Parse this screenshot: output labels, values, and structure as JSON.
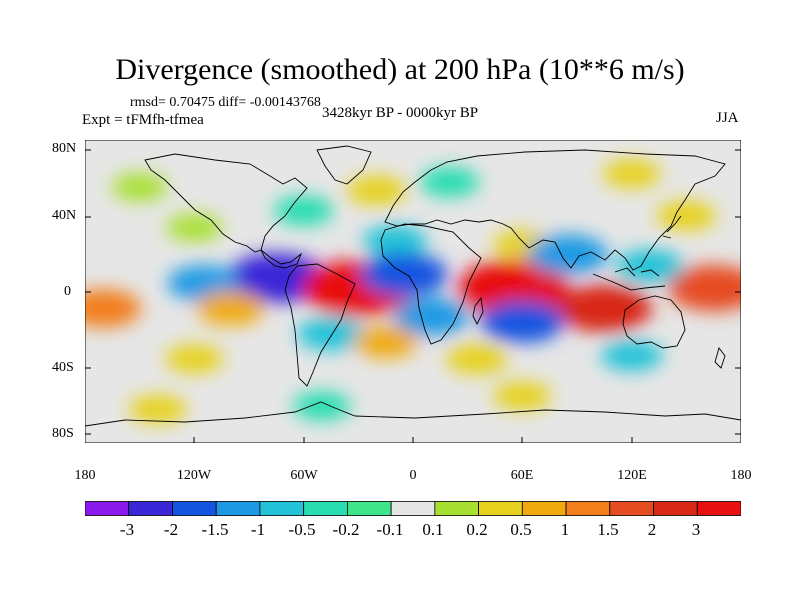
{
  "figure": {
    "title": "Divergence (smoothed) at 200 hPa (10**6 m/s)",
    "stats": "rmsd= 0.70475 diff= -0.00143768",
    "experiment": "Expt = tFMfh-tfmea",
    "period": "3428kyr BP - 0000kyr BP",
    "season": "JJA"
  },
  "map": {
    "variable": "divergence_200hPa_anomaly",
    "units": "10**6 m/s",
    "projection": "cylindrical equidistant",
    "lon_range": [
      -180,
      180
    ],
    "lat_range": [
      -90,
      90
    ],
    "y_tick_labels": [
      "80N",
      "40N",
      "0",
      "40S",
      "80S"
    ],
    "x_tick_labels": [
      "180",
      "120W",
      "60W",
      "0",
      "60E",
      "120E",
      "180"
    ],
    "anomaly_features": [
      {
        "lon": 150,
        "lat": 45,
        "value": 0.4
      },
      {
        "lon": 60,
        "lat": 28,
        "value": 0.3
      },
      {
        "lon": -10,
        "lat": 30,
        "value": -0.6
      },
      {
        "lon": -120,
        "lat": 38,
        "value": 0.2
      },
      {
        "lon": -60,
        "lat": 48,
        "value": -0.4
      },
      {
        "lon": -20,
        "lat": 60,
        "value": 0.4
      },
      {
        "lon": 20,
        "lat": 65,
        "value": -0.4
      },
      {
        "lon": 120,
        "lat": 70,
        "value": 0.3
      },
      {
        "lon": -150,
        "lat": 62,
        "value": 0.2
      },
      {
        "lon": -75,
        "lat": 8,
        "value": -2.4
      },
      {
        "lon": -115,
        "lat": 5,
        "value": -1.0
      },
      {
        "lon": -30,
        "lat": 2,
        "value": 3.2
      },
      {
        "lon": 55,
        "lat": 2,
        "value": 3.2
      },
      {
        "lon": 105,
        "lat": -10,
        "value": 2.2
      },
      {
        "lon": 85,
        "lat": 22,
        "value": -1.4
      },
      {
        "lon": -5,
        "lat": 10,
        "value": -1.8
      },
      {
        "lon": 10,
        "lat": -15,
        "value": -1.2
      },
      {
        "lon": 60,
        "lat": -18,
        "value": -1.6
      },
      {
        "lon": 165,
        "lat": 2,
        "value": 2.0
      },
      {
        "lon": 130,
        "lat": 15,
        "value": -0.8
      },
      {
        "lon": -170,
        "lat": -10,
        "value": 1.2
      },
      {
        "lon": -100,
        "lat": -10,
        "value": 0.8
      },
      {
        "lon": -45,
        "lat": -25,
        "value": -0.8
      },
      {
        "lon": -15,
        "lat": -30,
        "value": 0.6
      },
      {
        "lon": 35,
        "lat": -40,
        "value": 0.5
      },
      {
        "lon": 120,
        "lat": -38,
        "value": -0.5
      },
      {
        "lon": -120,
        "lat": -40,
        "value": 0.3
      },
      {
        "lon": -140,
        "lat": -70,
        "value": 0.3
      },
      {
        "lon": 60,
        "lat": -62,
        "value": 0.3
      },
      {
        "lon": -50,
        "lat": -68,
        "value": -0.3
      }
    ]
  },
  "colorbar": {
    "labels": [
      "-3",
      "-2",
      "-1.5",
      "-1",
      "-0.5",
      "-0.2",
      "-0.1",
      "0.1",
      "0.2",
      "0.5",
      "1",
      "1.5",
      "2",
      "3"
    ],
    "colors": [
      "#8a1aec",
      "#3a28d8",
      "#1455e0",
      "#1e9ae4",
      "#22c3d8",
      "#28ddb0",
      "#3ee58a",
      "#e6e6e6",
      "#a8e032",
      "#e6d21e",
      "#f0aa10",
      "#f27e1c",
      "#e64c22",
      "#d82818",
      "#e81010"
    ],
    "bounds": [
      -3,
      -2,
      -1.5,
      -1,
      -0.5,
      -0.2,
      -0.1,
      0.1,
      0.2,
      0.5,
      1,
      1.5,
      2,
      3
    ]
  }
}
